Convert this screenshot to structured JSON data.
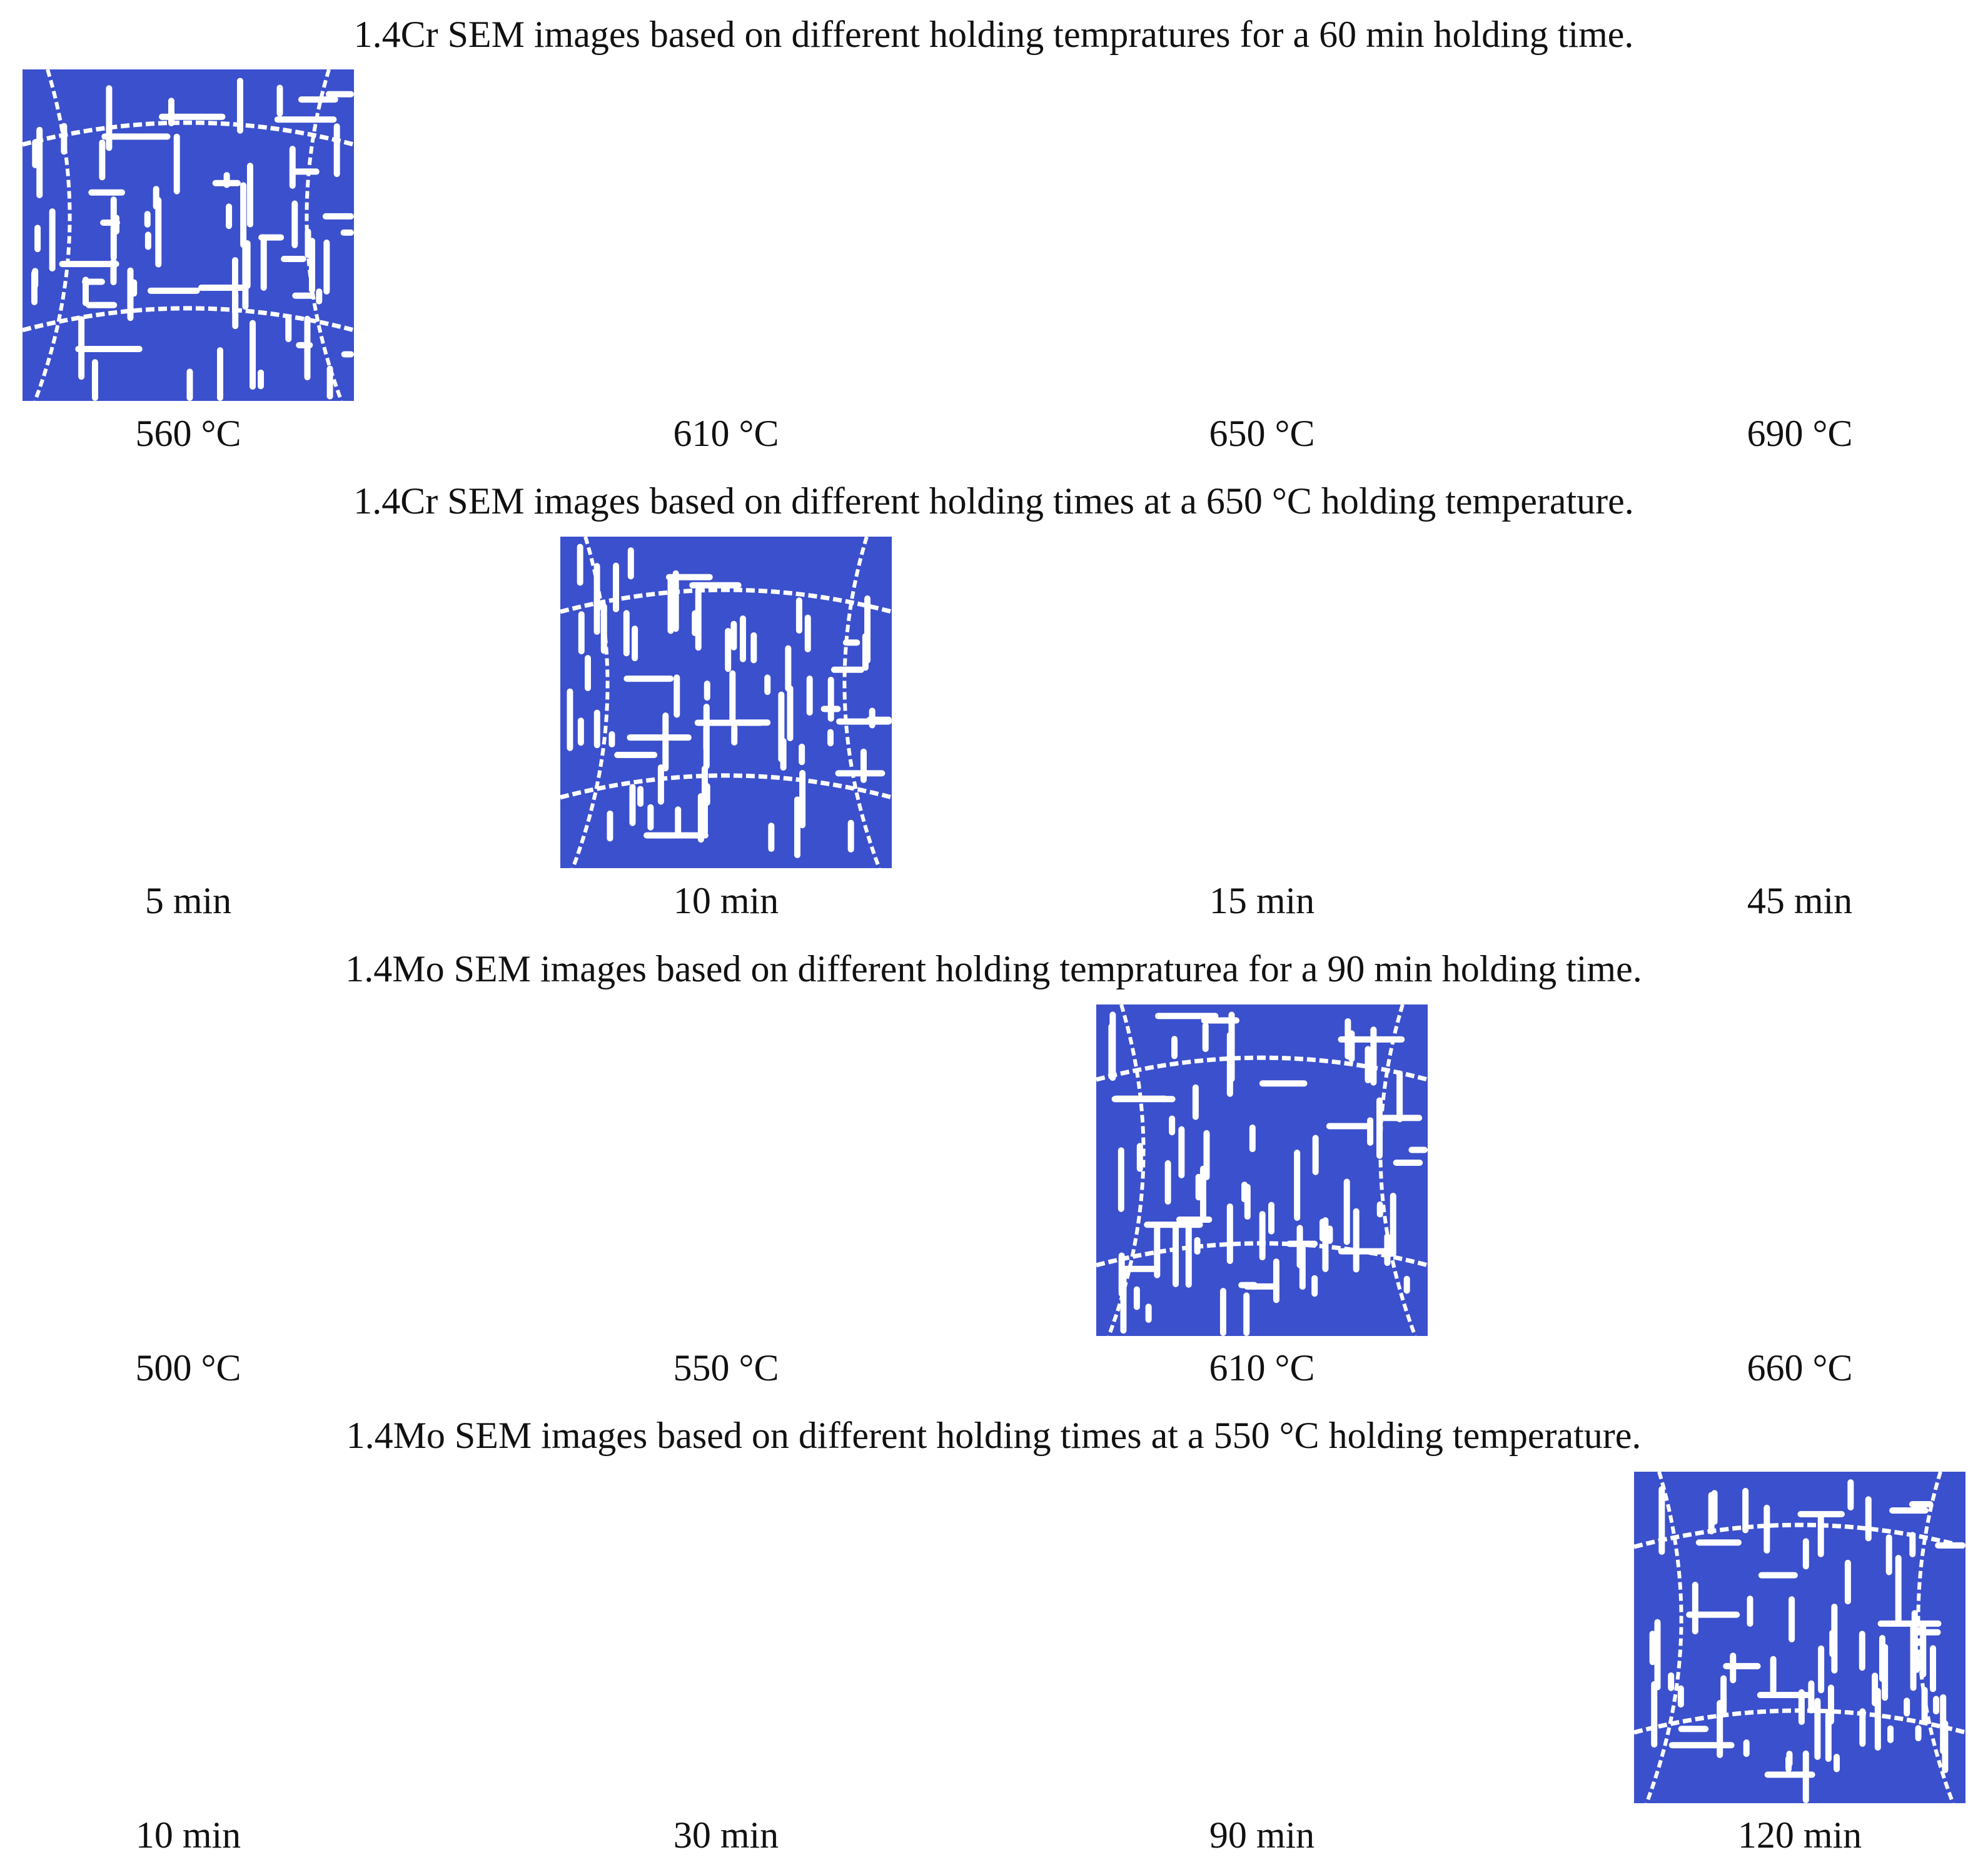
{
  "rows": [
    {
      "title": "1.4Cr SEM images based on different holding tempratures for a 60 min holding time.",
      "panels": [
        {
          "label": "560 °C"
        },
        {
          "label": "610 °C"
        },
        {
          "label": "650 °C"
        },
        {
          "label": "690 °C"
        }
      ]
    },
    {
      "title": "1.4Cr SEM images based on different holding times at a 650 °C holding temperature.",
      "panels": [
        {
          "label": "5 min"
        },
        {
          "label": "10 min"
        },
        {
          "label": "15 min"
        },
        {
          "label": "45 min"
        }
      ]
    },
    {
      "title": "1.4Mo SEM images based on different holding tempraturea for a 90 min holding time.",
      "panels": [
        {
          "label": "500 °C"
        },
        {
          "label": "550 °C"
        },
        {
          "label": "610 °C"
        },
        {
          "label": "660 °C"
        }
      ]
    },
    {
      "title": "1.4Mo SEM images based on different holding times at a 550 °C holding temperature.",
      "panels": [
        {
          "label": "10 min"
        },
        {
          "label": "30 min"
        },
        {
          "label": "90 min"
        },
        {
          "label": "120 min"
        }
      ]
    }
  ]
}
